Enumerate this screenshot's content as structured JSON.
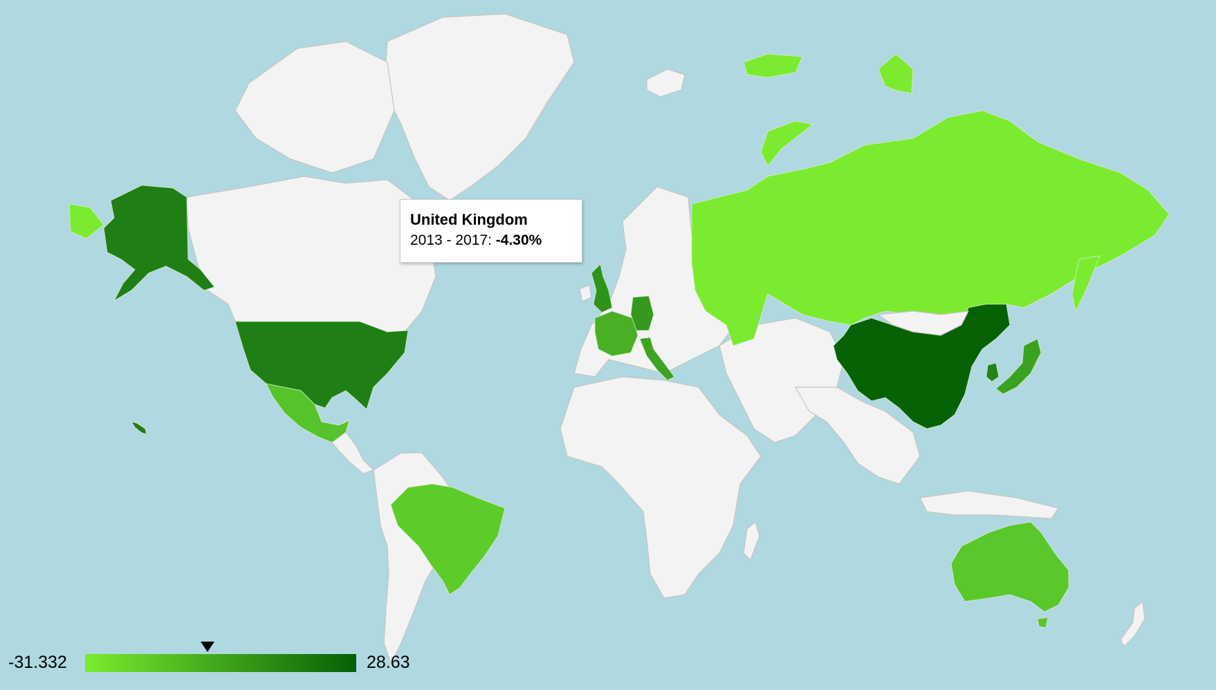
{
  "map": {
    "type": "geo-choropleth",
    "region": "world",
    "projection": "mercator",
    "color_scale": {
      "min": -31.332,
      "max": 28.63,
      "min_color": "#7beb2f",
      "max_color": "#046004",
      "no_data_color": "#f3f3f3"
    },
    "countries": [
      {
        "name": "United States",
        "color": "#1f7f14"
      },
      {
        "name": "Alaska (United States)",
        "color": "#1f7f14"
      },
      {
        "name": "Mexico",
        "color": "#56c32a"
      },
      {
        "name": "Brazil",
        "color": "#5dcc2a"
      },
      {
        "name": "United Kingdom",
        "color": "#2e931b"
      },
      {
        "name": "France",
        "color": "#49b025"
      },
      {
        "name": "Germany",
        "color": "#34991e"
      },
      {
        "name": "Italy",
        "color": "#3ea321"
      },
      {
        "name": "Russia",
        "color": "#7beb2f"
      },
      {
        "name": "China",
        "color": "#076206"
      },
      {
        "name": "South Korea",
        "color": "#248318"
      },
      {
        "name": "Japan",
        "color": "#3aa220"
      },
      {
        "name": "Australia",
        "color": "#5ac72a"
      }
    ]
  },
  "tooltip": {
    "title": "United Kingdom",
    "label": "2013 - 2017: ",
    "value": "-4.30%"
  },
  "legend": {
    "min_label": "-31.332",
    "max_label": "28.63",
    "marker_value": -4.3
  }
}
